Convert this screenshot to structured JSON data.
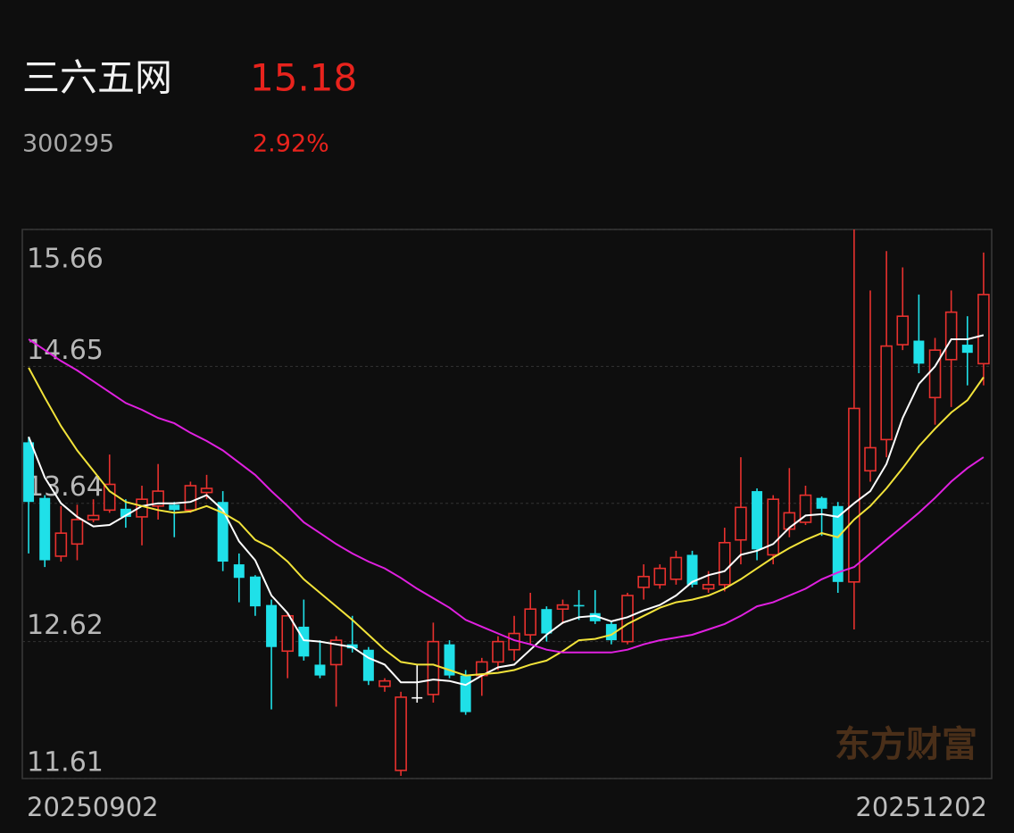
{
  "header": {
    "name": "三六五网",
    "price": "15.18",
    "code": "300295",
    "change": "2.92%"
  },
  "watermark": "东方财富",
  "chart_data": {
    "type": "candlestick",
    "categories": [
      "20250902",
      null,
      null,
      null,
      null,
      null,
      null,
      null,
      null,
      null,
      null,
      null,
      null,
      null,
      null,
      null,
      null,
      null,
      null,
      null,
      null,
      null,
      null,
      null,
      null,
      null,
      null,
      null,
      null,
      null,
      null,
      null,
      null,
      null,
      null,
      null,
      null,
      null,
      null,
      null,
      null,
      null,
      null,
      null,
      null,
      null,
      null,
      null,
      null,
      null,
      null,
      null,
      null,
      null,
      null,
      null,
      null,
      null,
      null,
      "20251202"
    ],
    "open": [
      14.09,
      13.68,
      13.25,
      13.34,
      13.52,
      13.59,
      13.6,
      13.54,
      13.62,
      13.63,
      13.59,
      13.72,
      13.65,
      13.19,
      13.1,
      12.89,
      12.55,
      12.73,
      12.45,
      12.45,
      12.6,
      12.56,
      12.29,
      11.67,
      12.21,
      12.23,
      12.6,
      12.37,
      12.37,
      12.47,
      12.56,
      12.67,
      12.86,
      12.86,
      12.89,
      12.83,
      12.75,
      12.62,
      13.02,
      13.04,
      13.08,
      13.26,
      13.01,
      13.04,
      13.37,
      13.73,
      13.26,
      13.45,
      13.5,
      13.68,
      13.62,
      13.06,
      13.88,
      14.11,
      14.81,
      14.84,
      14.42,
      14.7,
      14.81,
      14.67
    ],
    "high": [
      14.13,
      13.7,
      13.62,
      13.63,
      13.67,
      14.0,
      13.67,
      13.77,
      13.93,
      13.65,
      13.8,
      13.85,
      13.73,
      13.27,
      13.11,
      12.93,
      12.83,
      12.93,
      12.63,
      12.66,
      12.81,
      12.58,
      12.35,
      12.25,
      12.45,
      12.76,
      12.63,
      12.41,
      12.5,
      12.66,
      12.81,
      12.98,
      12.88,
      12.93,
      13.0,
      13.0,
      12.77,
      12.98,
      13.19,
      13.19,
      13.29,
      13.29,
      13.14,
      13.46,
      13.98,
      13.75,
      13.7,
      13.9,
      13.77,
      13.69,
      13.65,
      15.66,
      15.21,
      15.5,
      15.38,
      15.18,
      14.86,
      15.21,
      15.02,
      15.49
    ],
    "low": [
      13.27,
      13.17,
      13.21,
      13.22,
      13.5,
      13.57,
      13.46,
      13.33,
      13.52,
      13.39,
      13.57,
      13.67,
      13.14,
      12.91,
      12.81,
      12.12,
      12.35,
      12.48,
      12.35,
      12.14,
      12.54,
      12.3,
      12.25,
      11.63,
      12.17,
      12.17,
      12.35,
      12.08,
      12.22,
      12.41,
      12.48,
      12.6,
      12.62,
      12.75,
      12.78,
      12.75,
      12.6,
      12.6,
      12.93,
      13.01,
      13.04,
      13.02,
      12.98,
      12.99,
      13.19,
      13.22,
      13.19,
      13.39,
      13.48,
      13.4,
      12.98,
      12.71,
      13.8,
      13.98,
      14.77,
      14.6,
      14.22,
      14.35,
      14.51,
      14.51
    ],
    "close": [
      13.65,
      13.22,
      13.42,
      13.52,
      13.55,
      13.78,
      13.54,
      13.67,
      13.73,
      13.59,
      13.77,
      13.75,
      13.21,
      13.09,
      12.88,
      12.58,
      12.81,
      12.51,
      12.37,
      12.63,
      12.57,
      12.33,
      12.33,
      12.21,
      12.21,
      12.62,
      12.37,
      12.1,
      12.47,
      12.62,
      12.68,
      12.86,
      12.68,
      12.89,
      12.88,
      12.77,
      12.63,
      12.96,
      13.1,
      13.16,
      13.24,
      13.04,
      13.04,
      13.35,
      13.61,
      13.3,
      13.67,
      13.57,
      13.7,
      13.6,
      13.06,
      14.34,
      14.05,
      14.8,
      15.02,
      14.67,
      14.77,
      15.05,
      14.75,
      15.18
    ],
    "up_color": "#e8312e",
    "down_color": "#1fe0e8",
    "flat_color": "#ffffff",
    "series": [
      {
        "color": "#ffffff",
        "values": [
          14.13,
          13.83,
          13.64,
          13.54,
          13.47,
          13.48,
          13.55,
          13.62,
          13.64,
          13.64,
          13.65,
          13.7,
          13.59,
          13.36,
          13.22,
          12.96,
          12.83,
          12.63,
          12.62,
          12.6,
          12.58,
          12.5,
          12.45,
          12.32,
          12.32,
          12.34,
          12.33,
          12.3,
          12.37,
          12.43,
          12.45,
          12.56,
          12.67,
          12.76,
          12.8,
          12.81,
          12.77,
          12.8,
          12.85,
          12.89,
          12.96,
          13.06,
          13.11,
          13.14,
          13.26,
          13.29,
          13.34,
          13.46,
          13.55,
          13.56,
          13.54,
          13.64,
          13.73,
          13.93,
          14.27,
          14.52,
          14.65,
          14.85,
          14.85,
          14.88
        ]
      },
      {
        "color": "#f2e33a",
        "values": [
          14.64,
          14.42,
          14.21,
          14.03,
          13.88,
          13.73,
          13.65,
          13.62,
          13.59,
          13.57,
          13.58,
          13.62,
          13.57,
          13.5,
          13.37,
          13.31,
          13.21,
          13.08,
          12.98,
          12.88,
          12.78,
          12.67,
          12.56,
          12.47,
          12.45,
          12.45,
          12.41,
          12.37,
          12.38,
          12.39,
          12.41,
          12.45,
          12.48,
          12.55,
          12.63,
          12.64,
          12.67,
          12.75,
          12.81,
          12.87,
          12.91,
          12.93,
          12.96,
          13.01,
          13.08,
          13.16,
          13.24,
          13.31,
          13.37,
          13.42,
          13.39,
          13.52,
          13.62,
          13.75,
          13.9,
          14.06,
          14.19,
          14.31,
          14.4,
          14.57
        ]
      },
      {
        "color": "#e020e0",
        "values": [
          14.85,
          14.77,
          14.69,
          14.62,
          14.54,
          14.46,
          14.38,
          14.33,
          14.27,
          14.23,
          14.16,
          14.1,
          14.03,
          13.94,
          13.85,
          13.73,
          13.62,
          13.5,
          13.42,
          13.34,
          13.27,
          13.21,
          13.16,
          13.09,
          13.01,
          12.94,
          12.87,
          12.78,
          12.73,
          12.68,
          12.63,
          12.6,
          12.56,
          12.54,
          12.54,
          12.54,
          12.54,
          12.56,
          12.6,
          12.63,
          12.65,
          12.67,
          12.71,
          12.75,
          12.81,
          12.88,
          12.91,
          12.96,
          13.01,
          13.08,
          13.13,
          13.17,
          13.27,
          13.37,
          13.47,
          13.57,
          13.68,
          13.8,
          13.9,
          13.98
        ]
      }
    ],
    "ylim": [
      11.61,
      15.66
    ],
    "yticks": [
      15.66,
      14.65,
      13.64,
      12.62,
      11.61
    ],
    "grid": true
  }
}
